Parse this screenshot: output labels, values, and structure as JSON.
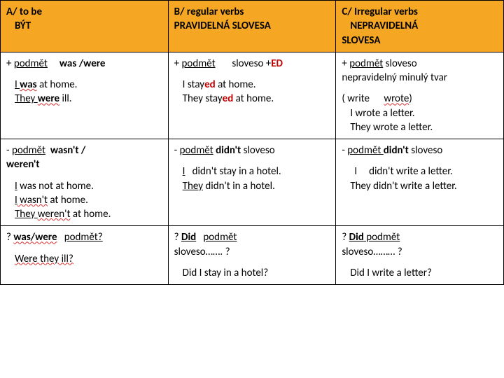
{
  "header": {
    "a": "A/ to be",
    "a2": "BÝT",
    "b": "B/ regular verbs",
    "b2": "PRAVIDELNÁ SLOVESA",
    "c": "C/ Irregular verbs",
    "c2": "NEPRAVIDELNÁ",
    "c3": "SLOVESA"
  },
  "r1": {
    "a_plus": "+ ",
    "a_pod": "podmět",
    "a_waswere": "was /were",
    "a_ex1a": "I ",
    "a_ex1b": "was",
    "a_ex1c": " at home.",
    "a_ex2a": "They ",
    "a_ex2b": "were",
    "a_ex2c": " ill.",
    "b_plus": "+ ",
    "b_pod": "podmět",
    "b_sloveso": "sloveso +",
    "b_ed": "ED",
    "b_ex1a": "I stay",
    "b_ex1b": "ed",
    "b_ex1c": " at home.",
    "b_ex2a": "They stay",
    "b_ex2b": "ed",
    "b_ex2c": " at home.",
    "c_plus": "+   ",
    "c_pod": "podmět",
    "c_slov": "  sloveso",
    "c_line2": "nepravidelný  minulý tvar",
    "c_write1": "( write",
    "c_write2": "wrote",
    "c_write3": ")",
    "c_ex1": "I wrote a letter.",
    "c_ex2": "They wrote a letter."
  },
  "r2": {
    "a_minus": "- ",
    "a_pod": "podmět",
    "a_wasnt": "wasn't /",
    "a_werent": "weren't",
    "a_ex1a": "I",
    "a_ex1b": " was not at home.",
    "a_ex2a": "I",
    "a_ex2b": " wasn't",
    "a_ex2c": " at home.",
    "a_ex3a": "They ",
    "a_ex3b": "weren't",
    "a_ex3c": " at home.",
    "b_minus": "- ",
    "b_pod": "podmět",
    "b_didnt": "didn't",
    "b_slov": "sloveso",
    "b_ex1a": "I",
    "b_ex1b": "didn't stay in a hotel.",
    "b_ex2a": "They",
    "b_ex2b": " didn't in a hotel.",
    "c_minus": "-   ",
    "c_pod": "podmět ",
    "c_didnt": "didn't",
    "c_slov": "  sloveso",
    "c_ex1a": "I",
    "c_ex1b": "didn't write a letter.",
    "c_ex2a": "They",
    "c_ex2b": " didn't write a letter."
  },
  "r3": {
    "a_q": "? ",
    "a_waswere": "was/were",
    "a_pod": "podmět?",
    "a_ex1": "Were they ill?",
    "b_q": "? ",
    "b_did": "Did",
    "b_pod": "podmět",
    "b_line2": "sloveso……. ?",
    "b_ex1": "Did  I stay in a hotel?",
    "c_q": "? ",
    "c_did": " Did",
    "c_pod": " podmět",
    "c_line2": "sloveso……… ?",
    "c_ex1": "Did I write a letter?"
  }
}
